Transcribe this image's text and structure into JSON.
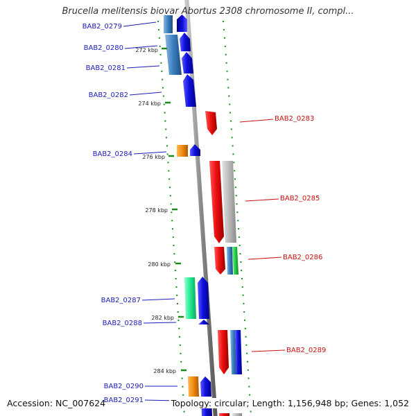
{
  "title": "Brucella melitensis biovar Abortus 2308 chromosome II, compl...",
  "footer": {
    "accession": "Accession: NC_007624",
    "stats": "Topology: circular; Length: 1,156,948 bp; Genes: 1,052"
  },
  "colors": {
    "forward_gene": "#1010e0",
    "reverse_gene": "#ee1010",
    "label_forward": "#1a1ab8",
    "label_reverse": "#cc1010",
    "tick": "#1a8a1a",
    "backbone": "#8a8a8a",
    "rna": "#f08a10",
    "pseudo": "#b4b4b4",
    "misc_feature": "#3a7ec0",
    "regulatory": "#22cc44",
    "variant": "#20e890"
  },
  "ticks": [
    {
      "label": "272 kbp"
    },
    {
      "label": "274 kbp"
    },
    {
      "label": "276 kbp"
    },
    {
      "label": "278 kbp"
    },
    {
      "label": "280 kbp"
    },
    {
      "label": "282 kbp"
    },
    {
      "label": "284 kbp"
    }
  ],
  "genes": [
    {
      "label": "BAB2_0279",
      "strand": "forward"
    },
    {
      "label": "BAB2_0280",
      "strand": "forward"
    },
    {
      "label": "BAB2_0281",
      "strand": "forward"
    },
    {
      "label": "BAB2_0282",
      "strand": "forward"
    },
    {
      "label": "BAB2_0283",
      "strand": "reverse"
    },
    {
      "label": "BAB2_0284",
      "strand": "forward"
    },
    {
      "label": "BAB2_0285",
      "strand": "reverse"
    },
    {
      "label": "BAB2_0286",
      "strand": "reverse"
    },
    {
      "label": "BAB2_0287",
      "strand": "forward"
    },
    {
      "label": "BAB2_0288",
      "strand": "forward"
    },
    {
      "label": "BAB2_0289",
      "strand": "reverse"
    },
    {
      "label": "BAB2_0290",
      "strand": "forward"
    },
    {
      "label": "BAB2_0291",
      "strand": "forward"
    }
  ]
}
